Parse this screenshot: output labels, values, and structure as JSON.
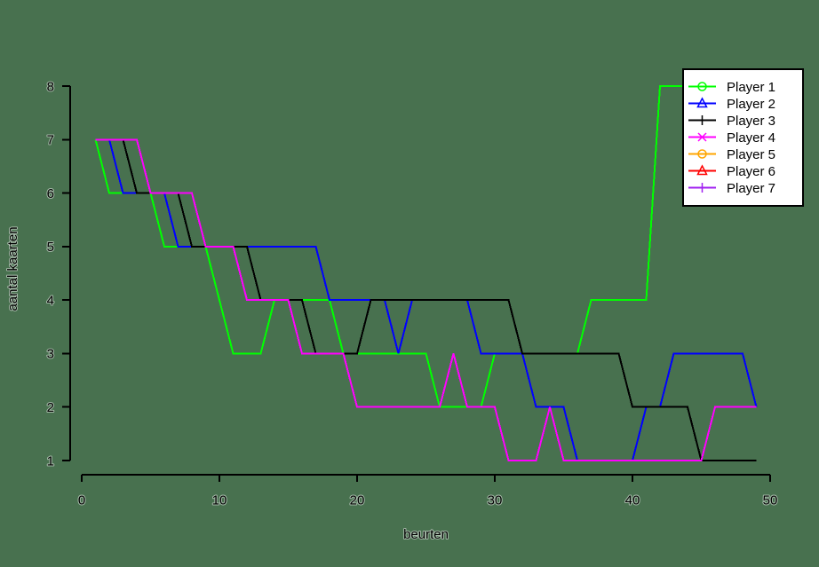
{
  "chart_data": {
    "type": "line",
    "title": "",
    "xlabel": "beurten",
    "ylabel": "aantal kaarten",
    "xlim": [
      0,
      50
    ],
    "ylim": [
      1,
      8
    ],
    "x_ticks": [
      0,
      10,
      20,
      30,
      40,
      50
    ],
    "y_ticks": [
      1,
      2,
      3,
      4,
      5,
      6,
      7,
      8
    ],
    "grid": false,
    "legend_position": "top-right",
    "colors": {
      "background": "#48714F",
      "axis": "#000000",
      "legend_background": "#FFFFFF",
      "legend_border": "#000000",
      "text": "#000000"
    },
    "x_values": [
      1,
      2,
      3,
      4,
      5,
      6,
      7,
      8,
      9,
      10,
      11,
      12,
      13,
      14,
      15,
      16,
      17,
      18,
      19,
      20,
      21,
      22,
      23,
      24,
      25,
      26,
      27,
      28,
      29,
      30,
      31,
      32,
      33,
      34,
      35,
      36,
      37,
      38,
      39,
      40,
      41,
      42,
      43,
      44,
      45,
      46,
      47,
      48,
      49
    ],
    "series": [
      {
        "name": "Player 1",
        "color": "#00FF00",
        "marker": "circle",
        "plotted": true,
        "values": [
          7,
          6,
          6,
          6,
          6,
          5,
          5,
          5,
          5,
          4,
          3,
          3,
          3,
          4,
          4,
          4,
          4,
          4,
          3,
          3,
          3,
          3,
          3,
          3,
          3,
          2,
          2,
          2,
          2,
          3,
          3,
          3,
          3,
          3,
          3,
          3,
          4,
          4,
          4,
          4,
          4,
          8,
          8,
          8,
          8,
          8,
          8,
          8,
          8
        ]
      },
      {
        "name": "Player 2",
        "color": "#0000FF",
        "marker": "triangle-up",
        "plotted": true,
        "values": [
          7,
          7,
          6,
          6,
          6,
          6,
          5,
          5,
          5,
          5,
          5,
          5,
          5,
          5,
          5,
          5,
          5,
          4,
          4,
          4,
          4,
          4,
          3,
          4,
          4,
          4,
          4,
          4,
          3,
          3,
          3,
          3,
          2,
          2,
          2,
          1,
          1,
          1,
          1,
          1,
          2,
          2,
          3,
          3,
          3,
          3,
          3,
          3,
          2
        ]
      },
      {
        "name": "Player 3",
        "color": "#000000",
        "marker": "plus",
        "plotted": true,
        "values": [
          7,
          7,
          7,
          6,
          6,
          6,
          6,
          5,
          5,
          5,
          5,
          5,
          4,
          4,
          4,
          4,
          3,
          3,
          3,
          3,
          4,
          4,
          4,
          4,
          4,
          4,
          4,
          4,
          4,
          4,
          4,
          3,
          3,
          3,
          3,
          3,
          3,
          3,
          3,
          2,
          2,
          2,
          2,
          2,
          1,
          1,
          1,
          1,
          1
        ]
      },
      {
        "name": "Player 4",
        "color": "#FF00FF",
        "marker": "x",
        "plotted": true,
        "values": [
          7,
          7,
          7,
          7,
          6,
          6,
          6,
          6,
          5,
          5,
          5,
          4,
          4,
          4,
          4,
          3,
          3,
          3,
          3,
          2,
          2,
          2,
          2,
          2,
          2,
          2,
          3,
          2,
          2,
          2,
          1,
          1,
          1,
          2,
          1,
          1,
          1,
          1,
          1,
          1,
          1,
          1,
          1,
          1,
          1,
          2,
          2,
          2,
          2
        ]
      },
      {
        "name": "Player 5",
        "color": "#FFA500",
        "marker": "circle",
        "plotted": false,
        "values": []
      },
      {
        "name": "Player 6",
        "color": "#FF0000",
        "marker": "triangle-up",
        "plotted": false,
        "values": []
      },
      {
        "name": "Player 7",
        "color": "#A020F0",
        "marker": "plus",
        "plotted": false,
        "values": []
      }
    ]
  }
}
